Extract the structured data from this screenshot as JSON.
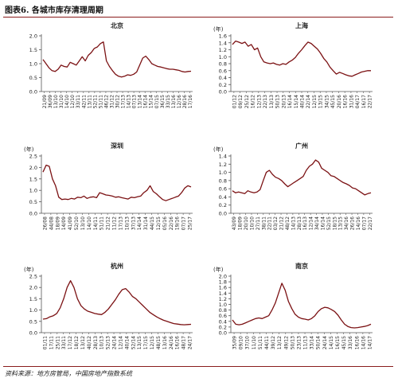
{
  "figure": {
    "title": "图表6. 各城市库存清理周期",
    "source": "资料来源：地方房管局，中国房地产指数系统"
  },
  "style": {
    "line_color": "#7b1113",
    "axis_color": "#555555",
    "text_color": "#222222"
  },
  "chart_data": [
    {
      "type": "line",
      "title": "北京",
      "unit": "",
      "ylim": [
        0,
        2.0
      ],
      "yticks": [
        "0.0",
        "0.5",
        "1.0",
        "1.5",
        "2.0"
      ],
      "xticks": [
        "21/09",
        "36/09",
        "13/10",
        "31/10",
        "14/10",
        "12/10",
        "33/11",
        "42/11",
        "13/11",
        "52/11",
        "51/11",
        "46/12",
        "31/12",
        "30/12",
        "17/13",
        "14/13",
        "07/13",
        "13/14",
        "16/14",
        "15/14",
        "07/15",
        "36/15",
        "33/15",
        "13/16",
        "12/16",
        "28/16",
        "17/16"
      ],
      "series": [
        {
          "name": "",
          "values": [
            1.15,
            1.0,
            0.85,
            0.75,
            0.72,
            0.8,
            0.95,
            0.9,
            0.88,
            1.05,
            1.0,
            0.95,
            1.1,
            1.25,
            1.1,
            1.3,
            1.4,
            1.55,
            1.6,
            1.72,
            1.78,
            1.1,
            0.9,
            0.75,
            0.62,
            0.55,
            0.52,
            0.55,
            0.6,
            0.58,
            0.62,
            0.7,
            0.95,
            1.2,
            1.27,
            1.15,
            1.0,
            0.95,
            0.9,
            0.88,
            0.85,
            0.82,
            0.8,
            0.8,
            0.78,
            0.76,
            0.72,
            0.7,
            0.72,
            0.73
          ]
        }
      ]
    },
    {
      "type": "line",
      "title": "上海",
      "unit": "(年)",
      "ylim": [
        0,
        1.6
      ],
      "yticks": [
        "0.0",
        "0.2",
        "0.4",
        "0.6",
        "0.8",
        "1.0",
        "1.2",
        "1.4",
        "1.6"
      ],
      "xticks": [
        "01/12",
        "09/12",
        "25/12",
        "16/12",
        "12/13",
        "22/13",
        "13/13",
        "50/13",
        "20/13",
        "16/14",
        "15/14",
        "40/14",
        "22/14",
        "12/15",
        "13/15",
        "34/15",
        "45/15",
        "20/16",
        "16/16",
        "31/16",
        "04/17",
        "16/17",
        "22/17"
      ],
      "series": [
        {
          "name": "",
          "values": [
            1.35,
            1.45,
            1.42,
            1.38,
            1.42,
            1.3,
            1.35,
            1.2,
            1.25,
            1.0,
            0.85,
            0.82,
            0.8,
            0.82,
            0.78,
            0.76,
            0.8,
            0.78,
            0.85,
            0.9,
            0.98,
            1.1,
            1.2,
            1.32,
            1.42,
            1.38,
            1.3,
            1.22,
            1.1,
            0.95,
            0.85,
            0.7,
            0.6,
            0.5,
            0.55,
            0.52,
            0.48,
            0.45,
            0.44,
            0.48,
            0.52,
            0.56,
            0.58,
            0.6,
            0.6
          ]
        }
      ]
    },
    {
      "type": "line",
      "title": "深圳",
      "unit": "(年)",
      "ylim": [
        0,
        2.5
      ],
      "yticks": [
        "0.0",
        "0.5",
        "1.0",
        "1.5",
        "2.0",
        "2.5"
      ],
      "xticks": [
        "26/08",
        "44/08",
        "18/09",
        "14/09",
        "41/09",
        "52/10",
        "13/10",
        "14/10",
        "14/11",
        "51/11",
        "21/12",
        "11/12",
        "17/13",
        "10/13",
        "37/13",
        "14/14",
        "31/14",
        "44/15",
        "12/15",
        "05/16",
        "22/16",
        "19/16",
        "07/17",
        "25/17"
      ],
      "series": [
        {
          "name": "",
          "values": [
            1.8,
            2.1,
            2.05,
            1.5,
            1.2,
            0.7,
            0.6,
            0.62,
            0.6,
            0.65,
            0.62,
            0.7,
            0.68,
            0.75,
            0.65,
            0.7,
            0.72,
            0.68,
            0.9,
            0.85,
            0.8,
            0.78,
            0.75,
            0.7,
            0.72,
            0.68,
            0.65,
            0.62,
            0.7,
            0.68,
            0.72,
            0.75,
            0.9,
            1.0,
            1.2,
            0.95,
            0.85,
            0.72,
            0.6,
            0.55,
            0.6,
            0.65,
            0.7,
            0.75,
            0.9,
            1.1,
            1.2,
            1.15
          ]
        }
      ]
    },
    {
      "type": "line",
      "title": "广州",
      "unit": "(年)",
      "ylim": [
        0,
        1.4
      ],
      "yticks": [
        "0.0",
        "0.2",
        "0.4",
        "0.6",
        "0.8",
        "1.0",
        "1.2",
        "1.4"
      ],
      "xticks": [
        "43/09",
        "18/09",
        "20/10",
        "10/10",
        "27/11",
        "38/11",
        "22/11",
        "03/12",
        "21/12",
        "48/12",
        "14/13",
        "28/13",
        "16/13",
        "12/14",
        "34/14",
        "16/14",
        "52/15",
        "18/15",
        "13/15",
        "34/16",
        "26/16",
        "14/16",
        "07/17",
        "22/17"
      ],
      "series": [
        {
          "name": "",
          "values": [
            0.55,
            0.5,
            0.52,
            0.5,
            0.48,
            0.55,
            0.52,
            0.5,
            0.52,
            0.58,
            0.8,
            1.0,
            1.05,
            0.95,
            0.88,
            0.85,
            0.8,
            0.72,
            0.65,
            0.7,
            0.75,
            0.8,
            0.85,
            0.9,
            1.05,
            1.15,
            1.2,
            1.3,
            1.25,
            1.1,
            1.05,
            1.0,
            0.92,
            0.9,
            0.85,
            0.8,
            0.75,
            0.72,
            0.68,
            0.62,
            0.6,
            0.55,
            0.5,
            0.45,
            0.48,
            0.5
          ]
        }
      ]
    },
    {
      "type": "line",
      "title": "杭州",
      "unit": "(年)",
      "ylim": [
        0,
        2.5
      ],
      "yticks": [
        "0.0",
        "0.5",
        "1.0",
        "1.5",
        "2.0",
        "2.5"
      ],
      "xticks": [
        "01/11",
        "17/11",
        "25/11",
        "33/11",
        "17/12",
        "18/12",
        "13/12",
        "40/12",
        "28/13",
        "10/13",
        "52/13",
        "24/14",
        "12/14",
        "40/14",
        "52/14",
        "13/15",
        "17/15",
        "12/15",
        "48/15",
        "13/16",
        "24/16",
        "16/16",
        "48/17",
        "24/17"
      ],
      "series": [
        {
          "name": "",
          "values": [
            0.6,
            0.62,
            0.7,
            0.75,
            0.85,
            1.1,
            1.5,
            2.0,
            2.3,
            2.0,
            1.5,
            1.2,
            1.05,
            0.95,
            0.9,
            0.85,
            0.82,
            0.8,
            0.9,
            1.05,
            1.25,
            1.45,
            1.7,
            1.9,
            1.95,
            1.8,
            1.6,
            1.5,
            1.35,
            1.2,
            1.05,
            0.9,
            0.8,
            0.7,
            0.62,
            0.55,
            0.5,
            0.45,
            0.4,
            0.38,
            0.36,
            0.35,
            0.36,
            0.37
          ]
        }
      ]
    },
    {
      "type": "line",
      "title": "南京",
      "unit": "(年)",
      "ylim": [
        0,
        2.0
      ],
      "yticks": [
        "0.0",
        "0.2",
        "0.4",
        "0.6",
        "0.8",
        "1.0",
        "1.2",
        "1.4",
        "1.6",
        "1.8",
        "2.0"
      ],
      "xticks": [
        "35/09",
        "09/10",
        "37/10",
        "11/10",
        "51/11",
        "44/11",
        "39/12",
        "13/12",
        "49/12",
        "50/13",
        "23/13",
        "11/13",
        "33/14",
        "50/14",
        "24/14",
        "14/15",
        "16/15",
        "45/15",
        "33/16",
        "16/16",
        "14/16",
        "14/17"
      ],
      "series": [
        {
          "name": "",
          "values": [
            0.45,
            0.3,
            0.28,
            0.3,
            0.35,
            0.4,
            0.45,
            0.5,
            0.52,
            0.5,
            0.55,
            0.6,
            0.8,
            1.05,
            1.4,
            1.75,
            1.5,
            1.1,
            0.85,
            0.65,
            0.55,
            0.5,
            0.48,
            0.45,
            0.5,
            0.6,
            0.75,
            0.85,
            0.9,
            0.88,
            0.82,
            0.75,
            0.62,
            0.45,
            0.3,
            0.22,
            0.18,
            0.17,
            0.18,
            0.2,
            0.22,
            0.25,
            0.3
          ]
        }
      ]
    }
  ]
}
